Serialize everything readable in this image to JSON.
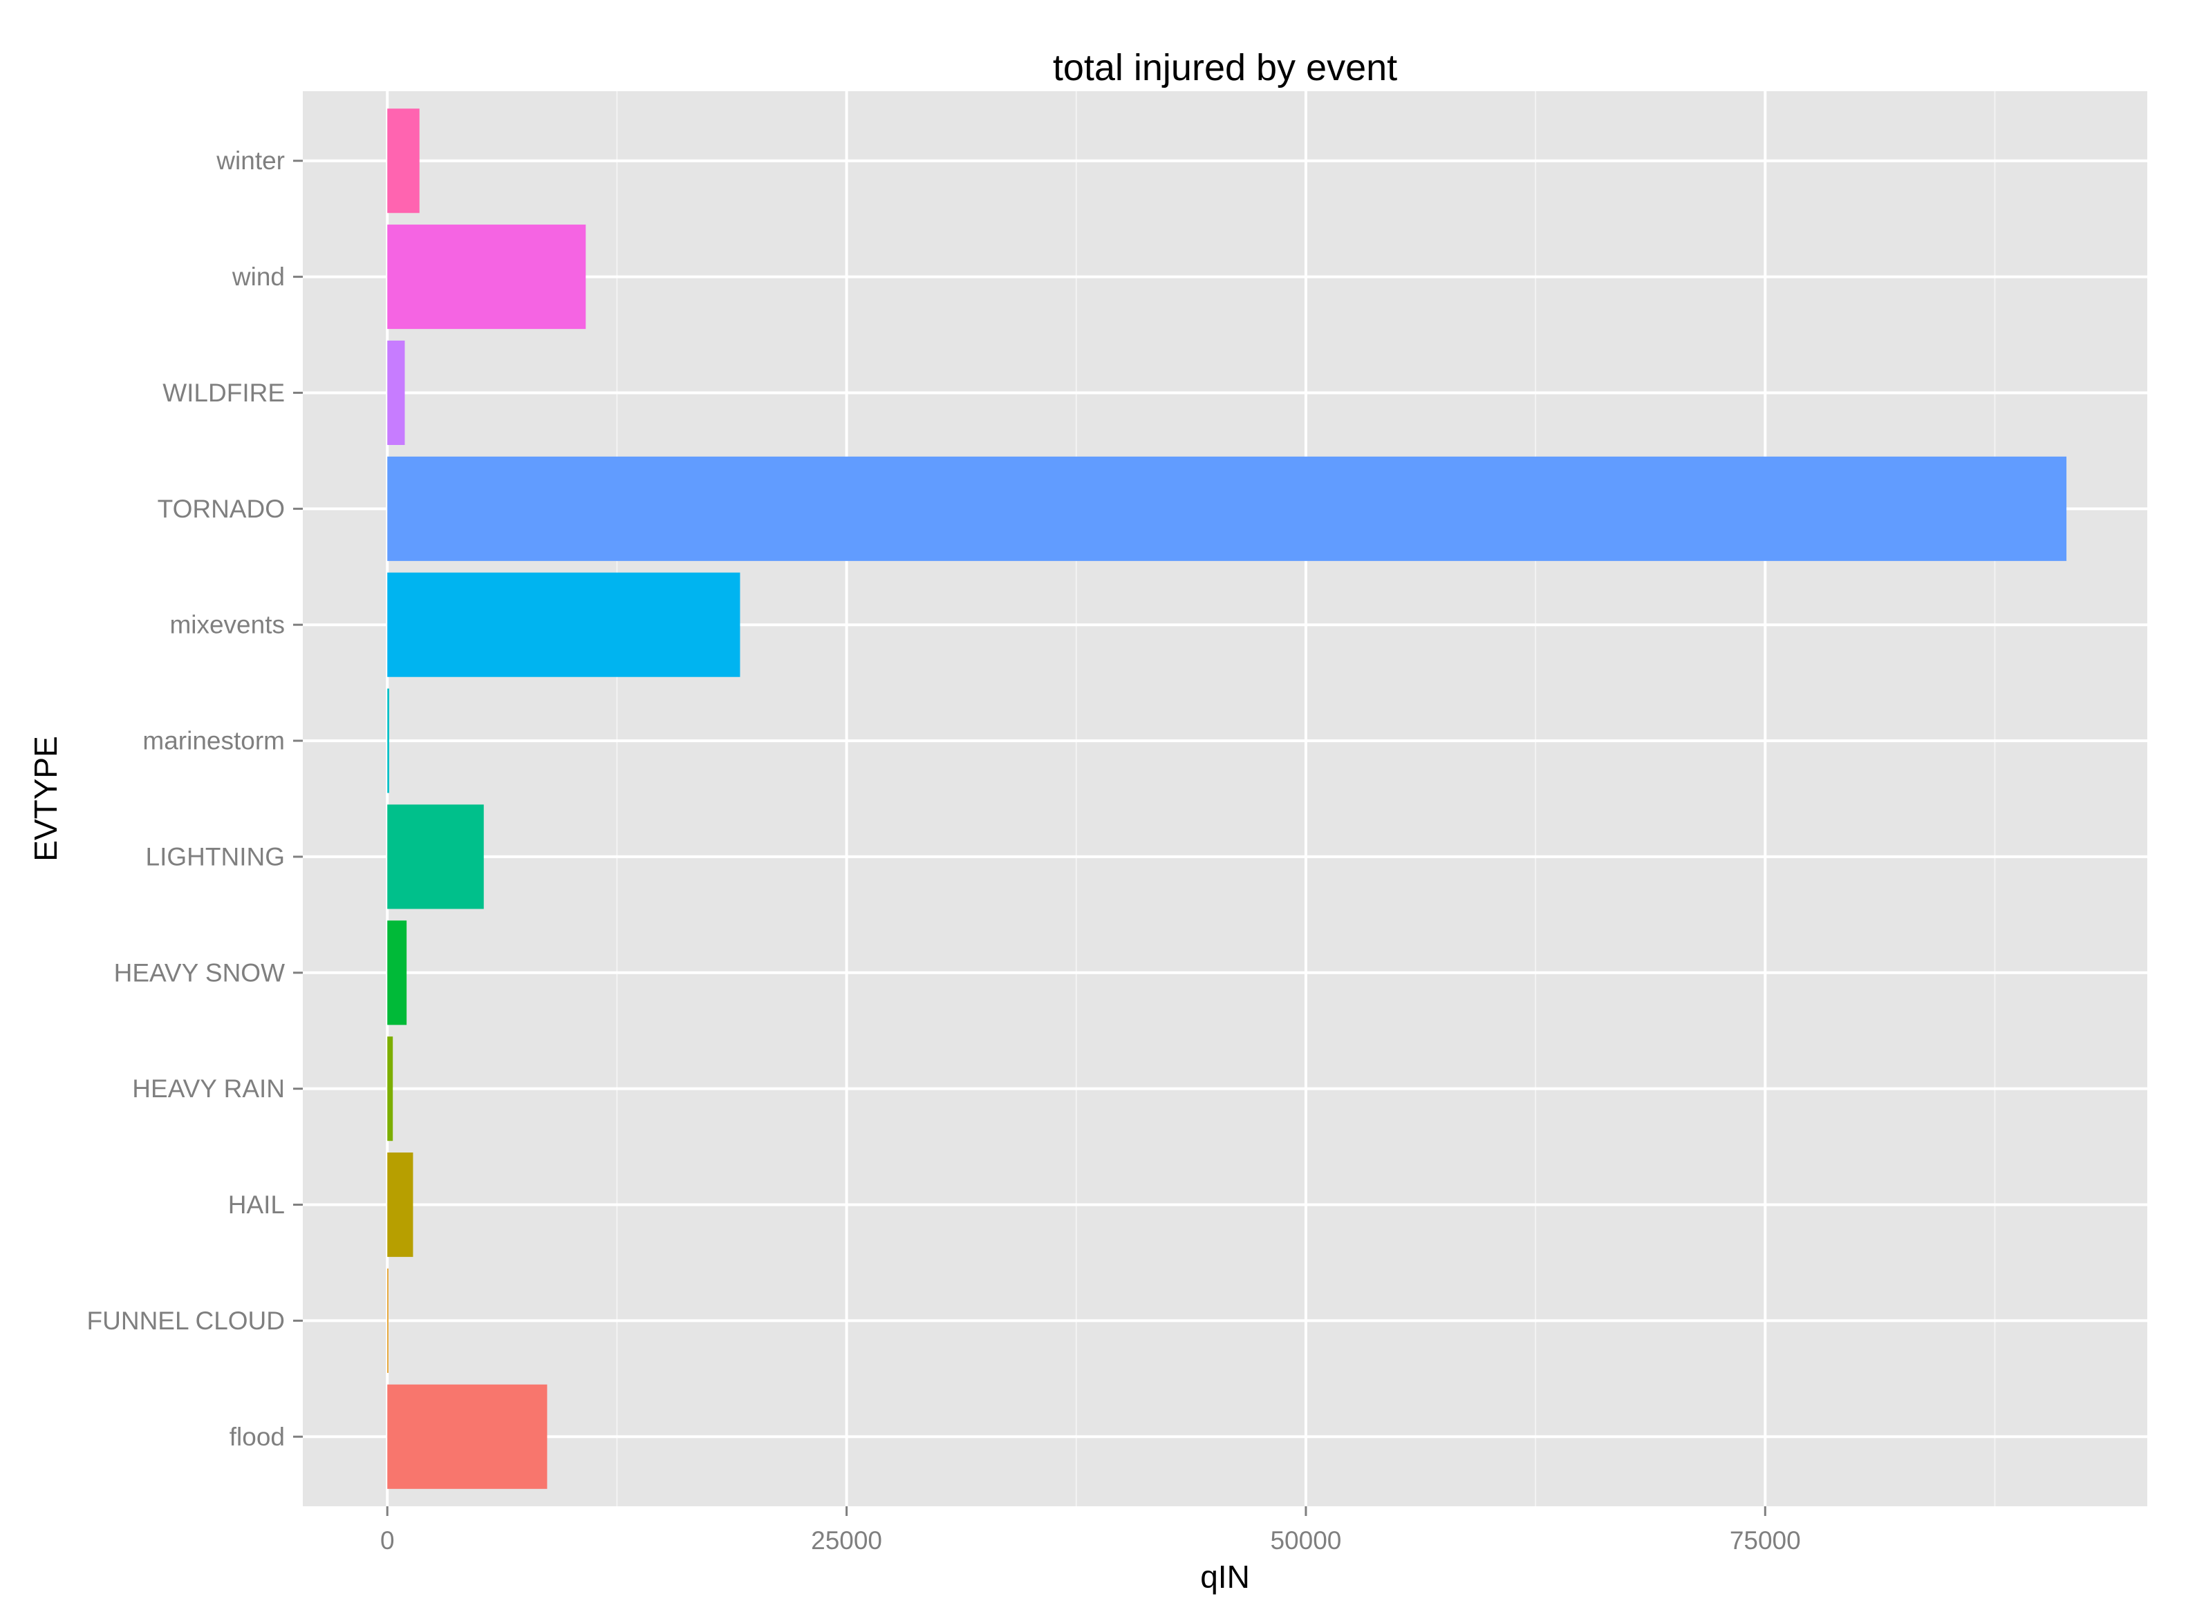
{
  "chart_data": {
    "type": "bar",
    "orientation": "horizontal",
    "title": "total injured by event",
    "xlabel": "qIN",
    "ylabel": "EVTYPE",
    "xlim": [
      -4600,
      95800
    ],
    "x_ticks": [
      0,
      25000,
      50000,
      75000
    ],
    "x_tick_labels": [
      "0",
      "25000",
      "50000",
      "75000"
    ],
    "grid": true,
    "categories": [
      "flood",
      "FUNNEL CLOUD",
      "HAIL",
      "HEAVY RAIN",
      "HEAVY SNOW",
      "LIGHTNING",
      "marinestorm",
      "mixevents",
      "TORNADO",
      "WILDFIRE",
      "wind",
      "winter"
    ],
    "values": [
      8700,
      0,
      1400,
      300,
      1050,
      5250,
      100,
      19200,
      91400,
      950,
      10800,
      1750
    ],
    "colors": [
      "#F8766D",
      "#DE8C00",
      "#B79F00",
      "#7CAE00",
      "#00BA38",
      "#00C08B",
      "#00BFC4",
      "#00B4F0",
      "#619CFF",
      "#C77CFF",
      "#F564E3",
      "#FF64B0"
    ],
    "background": "#E5E5E5",
    "gridline_color": "#FFFFFF"
  }
}
